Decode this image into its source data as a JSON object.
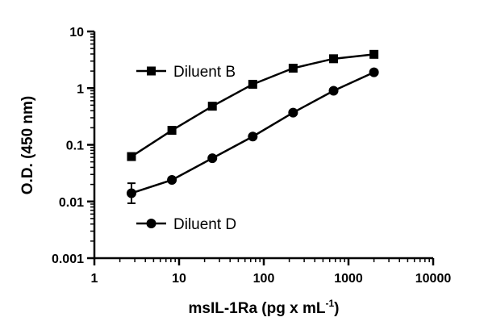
{
  "chart_data": {
    "type": "line",
    "x_scale": "log",
    "y_scale": "log",
    "xlim": [
      1,
      10000
    ],
    "ylim": [
      0.001,
      10
    ],
    "x_ticks": [
      1,
      10,
      100,
      1000,
      10000
    ],
    "x_tick_labels": [
      "1",
      "10",
      "100",
      "1000",
      "10000"
    ],
    "y_ticks": [
      0.001,
      0.01,
      0.1,
      1,
      10
    ],
    "y_tick_labels": [
      "0.001",
      "0.01",
      "0.1",
      "1",
      "10"
    ],
    "xlabel": {
      "main": "msIL-1Ra (pg x mL",
      "sup": "-1",
      "tail": ")"
    },
    "ylabel": "O.D. (450 nm)",
    "grid": false,
    "legend": "inline labels beside each series",
    "series": [
      {
        "name": "Diluent B",
        "marker": "square",
        "x": [
          2.74,
          8.23,
          24.7,
          74.1,
          222,
          667,
          2000
        ],
        "y": [
          0.062,
          0.18,
          0.48,
          1.17,
          2.25,
          3.3,
          3.95
        ]
      },
      {
        "name": "Diluent D",
        "marker": "circle",
        "x": [
          2.74,
          8.23,
          24.7,
          74.1,
          222,
          667,
          2000
        ],
        "y": [
          0.014,
          0.024,
          0.058,
          0.14,
          0.37,
          0.9,
          1.9
        ],
        "error_bars": [
          {
            "x": 2.74,
            "low": 0.0093,
            "high": 0.021
          }
        ]
      }
    ]
  }
}
